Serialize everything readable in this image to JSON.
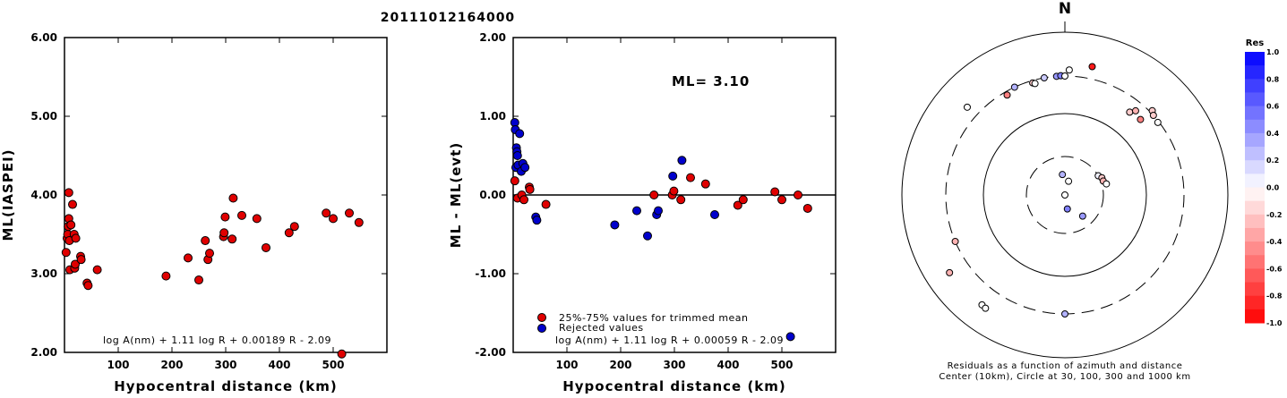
{
  "event_id": "20111012164000",
  "ml_label": "ML=  3.10",
  "chart_data": [
    {
      "type": "scatter",
      "xlabel": "Hypocentral distance (km)",
      "ylabel": "ML(IASPEI)",
      "xlim": [
        0,
        600
      ],
      "ylim": [
        2.0,
        6.0
      ],
      "xticks": [
        "100",
        "200",
        "300",
        "400",
        "500"
      ],
      "yticks": [
        "2.00",
        "3.00",
        "4.00",
        "5.00",
        "6.00"
      ],
      "formula": "log A(nm) + 1.11 log R + 0.00189 R - 2.09",
      "series": [
        {
          "color": "#e00000",
          "points": [
            [
              3,
              3.27
            ],
            [
              5,
              3.45
            ],
            [
              6,
              3.5
            ],
            [
              7,
              3.6
            ],
            [
              8,
              3.7
            ],
            [
              8,
              4.03
            ],
            [
              9,
              3.42
            ],
            [
              10,
              3.05
            ],
            [
              12,
              3.62
            ],
            [
              15,
              3.88
            ],
            [
              18,
              3.5
            ],
            [
              19,
              3.07
            ],
            [
              20,
              3.12
            ],
            [
              21,
              3.45
            ],
            [
              30,
              3.22
            ],
            [
              31,
              3.18
            ],
            [
              42,
              2.88
            ],
            [
              44,
              2.85
            ],
            [
              61,
              3.05
            ],
            [
              189,
              2.97
            ],
            [
              230,
              3.2
            ],
            [
              250,
              2.92
            ],
            [
              262,
              3.42
            ],
            [
              267,
              3.18
            ],
            [
              270,
              3.26
            ],
            [
              296,
              3.47
            ],
            [
              297,
              3.52
            ],
            [
              299,
              3.72
            ],
            [
              312,
              3.44
            ],
            [
              314,
              3.96
            ],
            [
              330,
              3.74
            ],
            [
              358,
              3.7
            ],
            [
              375,
              3.33
            ],
            [
              418,
              3.52
            ],
            [
              428,
              3.6
            ],
            [
              487,
              3.77
            ],
            [
              500,
              3.7
            ],
            [
              516,
              1.98
            ],
            [
              530,
              3.77
            ],
            [
              548,
              3.65
            ]
          ]
        }
      ]
    },
    {
      "type": "scatter",
      "xlabel": "Hypocentral distance (km)",
      "ylabel": "ML - ML(evt)",
      "xlim": [
        0,
        600
      ],
      "ylim": [
        -2.0,
        2.0
      ],
      "xticks": [
        "100",
        "200",
        "300",
        "400",
        "500"
      ],
      "yticks": [
        "-2.00",
        "-1.00",
        "0.00",
        "1.00",
        "2.00"
      ],
      "formula": "log A(nm) + 1.11 log R + 0.00059 R - 2.09",
      "legend": [
        "25%-75% values for trimmed mean",
        "Rejected values"
      ],
      "series": [
        {
          "color": "#e00000",
          "points": [
            [
              3,
              0.18
            ],
            [
              8,
              -0.04
            ],
            [
              16,
              0.0
            ],
            [
              20,
              -0.06
            ],
            [
              30,
              0.1
            ],
            [
              31,
              0.07
            ],
            [
              61,
              -0.12
            ],
            [
              262,
              0.0
            ],
            [
              296,
              0.0
            ],
            [
              299,
              0.05
            ],
            [
              312,
              -0.06
            ],
            [
              330,
              0.22
            ],
            [
              358,
              0.14
            ],
            [
              418,
              -0.13
            ],
            [
              428,
              -0.06
            ],
            [
              487,
              0.04
            ],
            [
              500,
              -0.06
            ],
            [
              530,
              0.0
            ],
            [
              548,
              -0.17
            ]
          ]
        },
        {
          "color": "#0000cc",
          "points": [
            [
              3,
              0.92
            ],
            [
              4,
              0.83
            ],
            [
              5,
              0.35
            ],
            [
              6,
              0.6
            ],
            [
              7,
              0.55
            ],
            [
              8,
              0.5
            ],
            [
              9,
              0.38
            ],
            [
              12,
              0.78
            ],
            [
              15,
              0.3
            ],
            [
              18,
              0.4
            ],
            [
              22,
              0.35
            ],
            [
              42,
              -0.28
            ],
            [
              44,
              -0.32
            ],
            [
              189,
              -0.38
            ],
            [
              230,
              -0.2
            ],
            [
              250,
              -0.52
            ],
            [
              267,
              -0.25
            ],
            [
              270,
              -0.2
            ],
            [
              297,
              0.24
            ],
            [
              314,
              0.44
            ],
            [
              375,
              -0.25
            ],
            [
              516,
              -1.8
            ]
          ]
        }
      ]
    },
    {
      "type": "polar",
      "north_label": "N",
      "circles_km": [
        10,
        30,
        100,
        300,
        1000
      ],
      "caption_line1": "Residuals as a function of azimuth and distance",
      "caption_line2": "Center (10km), Circle at 30, 100, 300 and 1000 km",
      "colorbar_title": "Res",
      "colorbar_ticks": [
        "1.0",
        "0.8",
        "0.6",
        "0.4",
        "0.2",
        "0.0",
        "-0.2",
        "-0.4",
        "-0.6",
        "-0.8",
        "-1.0"
      ],
      "points": [
        {
          "az": 353,
          "dist_km": 18,
          "res": 0.3
        },
        {
          "az": 3,
          "dist_km": 10,
          "res": 0.0
        },
        {
          "az": 60,
          "dist_km": 30,
          "res": 0.05
        },
        {
          "az": 65,
          "dist_km": 32,
          "res": -0.2
        },
        {
          "az": 70,
          "dist_km": 32,
          "res": -0.3
        },
        {
          "az": 75,
          "dist_km": 34,
          "res": 0.0
        },
        {
          "az": 170,
          "dist_km": 15,
          "res": 0.5
        },
        {
          "az": 140,
          "dist_km": 22,
          "res": 0.4
        },
        {
          "az": 15,
          "dist_km": 15,
          "res": 0.0
        },
        {
          "az": 356,
          "dist_km": 300,
          "res": 0.4
        },
        {
          "az": 358,
          "dist_km": 303,
          "res": 0.5
        },
        {
          "az": 0,
          "dist_km": 300,
          "res": 0.0
        },
        {
          "az": 2,
          "dist_km": 355,
          "res": 0.0
        },
        {
          "az": 350,
          "dist_km": 300,
          "res": 0.2
        },
        {
          "az": 344,
          "dist_km": 280,
          "res": -0.2
        },
        {
          "az": 335,
          "dist_km": 300,
          "res": 0.3
        },
        {
          "az": 330,
          "dist_km": 270,
          "res": -0.5
        },
        {
          "az": 345,
          "dist_km": 270,
          "res": 0.0
        },
        {
          "az": 312,
          "dist_km": 420,
          "res": 0.0
        },
        {
          "az": 12,
          "dist_km": 420,
          "res": -0.9
        },
        {
          "az": 38,
          "dist_km": 200,
          "res": -0.2
        },
        {
          "az": 40,
          "dist_km": 230,
          "res": -0.3
        },
        {
          "az": 45,
          "dist_km": 210,
          "res": -0.5
        },
        {
          "az": 46,
          "dist_km": 320,
          "res": -0.2
        },
        {
          "az": 48,
          "dist_km": 300,
          "res": -0.2
        },
        {
          "az": 52,
          "dist_km": 290,
          "res": 0.0
        },
        {
          "az": 247,
          "dist_km": 300,
          "res": -0.3
        },
        {
          "az": 236,
          "dist_km": 520,
          "res": -0.3
        },
        {
          "az": 217,
          "dist_km": 500,
          "res": 0.0
        },
        {
          "az": 215,
          "dist_km": 510,
          "res": 0.0
        },
        {
          "az": 180,
          "dist_km": 300,
          "res": 0.3
        }
      ]
    }
  ]
}
